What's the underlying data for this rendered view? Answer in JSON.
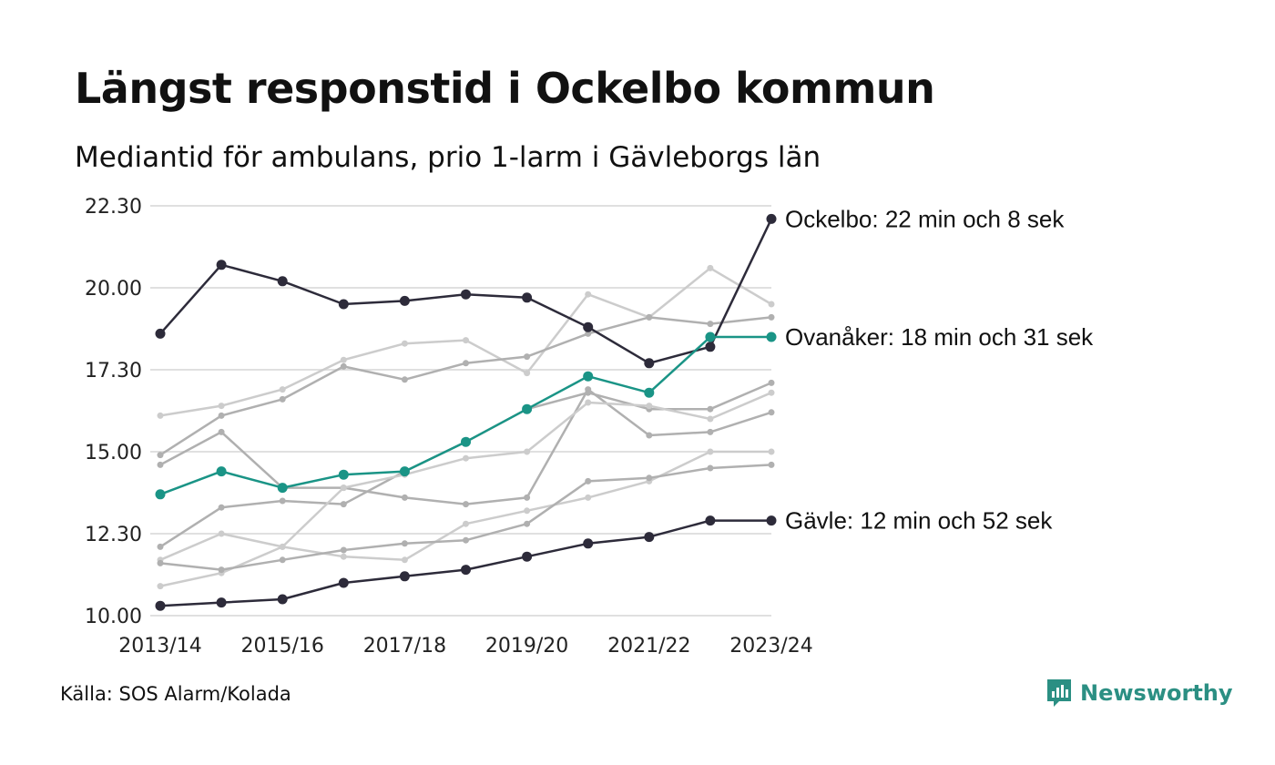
{
  "title": "Längst responstid i Ockelbo kommun",
  "subtitle": "Mediantid för ambulans, prio 1-larm i Gävleborgs län",
  "source": "Källa: SOS Alarm/Kolada",
  "brand": {
    "name": "Newsworthy",
    "icon": "newsworthy-logo-icon",
    "color": "#2b8f83"
  },
  "chart_data": {
    "type": "line",
    "x": [
      "2013/14",
      "2014/15",
      "2015/16",
      "2016/17",
      "2017/18",
      "2018/19",
      "2019/20",
      "2020/21",
      "2021/22",
      "2022/23",
      "2023/24"
    ],
    "x_tick_labels": [
      "2013/14",
      "2015/16",
      "2017/18",
      "2019/20",
      "2021/22",
      "2023/24"
    ],
    "ylim": [
      10,
      22.5
    ],
    "y_ticks": [
      10,
      12.5,
      15,
      17.5,
      20,
      22.5
    ],
    "y_tick_labels": [
      "10.00",
      "12.30",
      "15.00",
      "17.30",
      "20.00",
      "22.30"
    ],
    "grid": true,
    "colors": {
      "highlight_dark": "#2d2b3a",
      "highlight_teal": "#1a9486",
      "other_gray": "#b0b0b0",
      "other_light": "#cccccc",
      "grid": "#e0e0e0"
    },
    "series": [
      {
        "name": "",
        "style": "light",
        "values": [
          16.1,
          16.4,
          16.9,
          17.8,
          18.3,
          18.4,
          17.4,
          19.8,
          19.1,
          20.6,
          19.5
        ]
      },
      {
        "name": "",
        "style": "gray",
        "values": [
          14.9,
          16.1,
          16.6,
          17.6,
          17.2,
          17.7,
          17.9,
          18.6,
          19.1,
          18.9,
          19.1
        ]
      },
      {
        "name": "",
        "style": "gray",
        "values": [
          14.6,
          15.6,
          13.9,
          13.9,
          13.6,
          13.4,
          13.6,
          16.9,
          15.5,
          15.6,
          16.2
        ]
      },
      {
        "name": "",
        "style": "gray",
        "values": [
          12.1,
          13.3,
          13.5,
          13.4,
          14.4,
          15.3,
          16.3,
          16.8,
          16.3,
          16.3,
          17.1
        ]
      },
      {
        "name": "",
        "style": "light",
        "values": [
          11.7,
          12.5,
          12.1,
          13.9,
          14.3,
          14.8,
          15.0,
          16.5,
          16.4,
          16.0,
          16.8
        ]
      },
      {
        "name": "",
        "style": "light",
        "values": [
          10.9,
          11.3,
          12.1,
          11.8,
          11.7,
          12.8,
          13.2,
          13.6,
          14.1,
          15.0,
          15.0
        ]
      },
      {
        "name": "",
        "style": "gray",
        "values": [
          11.6,
          11.4,
          11.7,
          12.0,
          12.2,
          12.3,
          12.8,
          14.1,
          14.2,
          14.5,
          14.6
        ]
      },
      {
        "name": "Ockelbo",
        "style": "dark",
        "label": "Ockelbo: 22 min och 8 sek",
        "values": [
          18.6,
          20.7,
          20.2,
          19.5,
          19.6,
          19.8,
          19.7,
          18.8,
          17.7,
          18.2,
          22.1
        ]
      },
      {
        "name": "Ovanåker",
        "style": "teal",
        "label": "Ovanåker: 18 min och 31 sek",
        "values": [
          13.7,
          14.4,
          13.9,
          14.3,
          14.4,
          15.3,
          16.3,
          17.3,
          16.8,
          18.5,
          18.5
        ]
      },
      {
        "name": "Gävle",
        "style": "dark",
        "label": "Gävle: 12 min och 52 sek",
        "values": [
          10.3,
          10.4,
          10.5,
          11.0,
          11.2,
          11.4,
          11.8,
          12.2,
          12.4,
          12.9,
          12.9
        ]
      }
    ]
  }
}
